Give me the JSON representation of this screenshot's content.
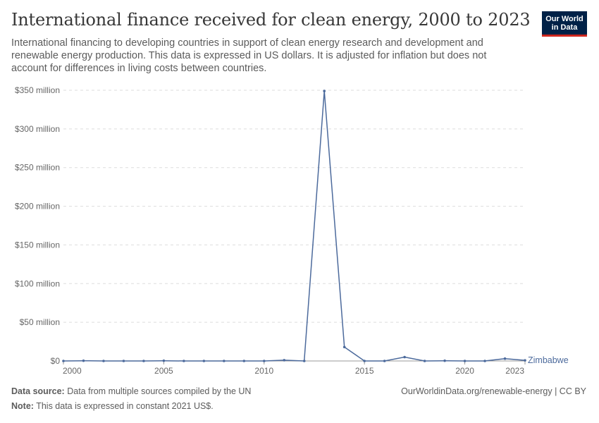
{
  "header": {
    "title": "International finance received for clean energy, 2000 to 2023",
    "subtitle": "International financing to developing countries in support of clean energy research and development and renewable energy production. This data is expressed in US dollars. It is adjusted for inflation but does not account for differences in living costs between countries."
  },
  "logo": {
    "line1": "Our World",
    "line2": "in Data",
    "bg_color": "#002147",
    "accent_color": "#ce261e"
  },
  "footer": {
    "source_label": "Data source:",
    "source_text": "Data from multiple sources compiled by the UN",
    "note_label": "Note:",
    "note_text": "This data is expressed in constant 2021 US$.",
    "url": "OurWorldinData.org/renewable-energy | CC BY"
  },
  "chart_data": {
    "type": "line",
    "x": [
      2000,
      2001,
      2002,
      2003,
      2004,
      2005,
      2006,
      2007,
      2008,
      2009,
      2010,
      2011,
      2012,
      2013,
      2014,
      2015,
      2016,
      2017,
      2018,
      2019,
      2020,
      2021,
      2022,
      2023
    ],
    "series": [
      {
        "name": "Zimbabwe",
        "color": "#4c6a9c",
        "values": [
          0,
          0.3,
          0,
          0,
          0,
          0.3,
          0,
          0,
          0,
          0,
          0,
          1,
          0,
          349,
          18,
          0,
          0,
          5,
          0,
          0.3,
          0,
          0,
          3,
          0.8
        ]
      }
    ],
    "x_ticks": [
      {
        "value": 2000,
        "label": "2000"
      },
      {
        "value": 2005,
        "label": "2005"
      },
      {
        "value": 2010,
        "label": "2010"
      },
      {
        "value": 2015,
        "label": "2015"
      },
      {
        "value": 2020,
        "label": "2020"
      },
      {
        "value": 2023,
        "label": "2023"
      }
    ],
    "y_ticks": [
      {
        "value": 0,
        "label": "$0"
      },
      {
        "value": 50,
        "label": "$50 million"
      },
      {
        "value": 100,
        "label": "$100 million"
      },
      {
        "value": 150,
        "label": "$150 million"
      },
      {
        "value": 200,
        "label": "$200 million"
      },
      {
        "value": 250,
        "label": "$250 million"
      },
      {
        "value": 300,
        "label": "$300 million"
      },
      {
        "value": 350,
        "label": "$350 million"
      }
    ],
    "xlim": [
      2000,
      2023
    ],
    "ylim": [
      0,
      350
    ],
    "grid": "horizontal-dashed"
  }
}
